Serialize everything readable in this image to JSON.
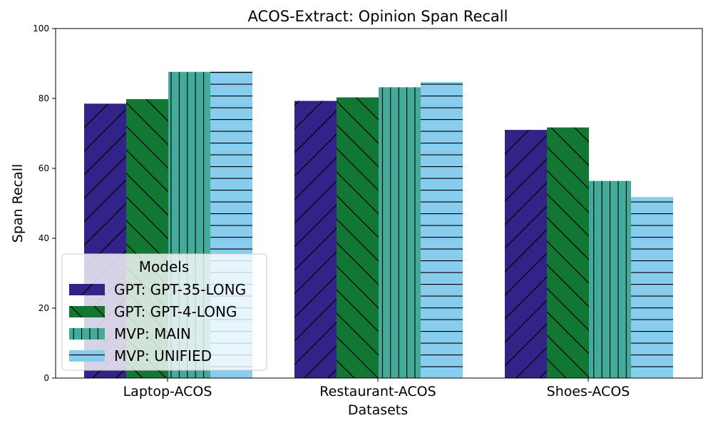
{
  "chart_data": {
    "type": "bar",
    "title": "ACOS-Extract: Opinion Span Recall",
    "xlabel": "Datasets",
    "ylabel": "Span Recall",
    "ylim": [
      0,
      100
    ],
    "yticks": [
      "0",
      "20",
      "40",
      "60",
      "80",
      "100"
    ],
    "categories": [
      "Laptop-ACOS",
      "Restaurant-ACOS",
      "Shoes-ACOS"
    ],
    "series": [
      {
        "name": "GPT: GPT-35-LONG",
        "color": "#332288",
        "hatch": "forward-diagonal",
        "values": [
          78.5,
          79.3,
          71.0
        ]
      },
      {
        "name": "GPT: GPT-4-LONG",
        "color": "#117733",
        "hatch": "back-diagonal",
        "values": [
          79.8,
          80.3,
          71.7
        ]
      },
      {
        "name": "MVP: MAIN",
        "color": "#44AA99",
        "hatch": "vertical",
        "values": [
          87.6,
          83.2,
          56.4
        ]
      },
      {
        "name": "MVP: UNIFIED",
        "color": "#88CCEE",
        "hatch": "horizontal",
        "values": [
          87.8,
          84.7,
          51.8
        ]
      }
    ],
    "legend": {
      "title": "Models",
      "placement": "lower-left"
    },
    "grid": false
  }
}
